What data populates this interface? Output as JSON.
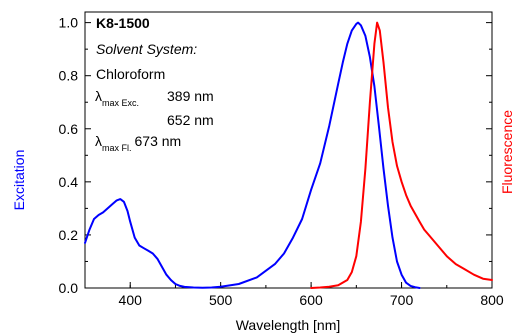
{
  "chart_data": {
    "type": "line",
    "xlabel": "Wavelength [nm]",
    "ylabel_left": "Excitation",
    "ylabel_right": "Fluorescence",
    "xlim": [
      350,
      800
    ],
    "ylim": [
      0,
      1.04
    ],
    "x_ticks": [
      "400",
      "500",
      "600",
      "700",
      "800"
    ],
    "y_ticks": [
      "0.0",
      "0.2",
      "0.4",
      "0.6",
      "0.8",
      "1.0"
    ],
    "grid": false,
    "colors": {
      "excitation": "#0000ff",
      "fluorescence": "#ff0000",
      "frame": "#000000"
    },
    "annotations": {
      "compound": "K8-1500",
      "solvent_label": "Solvent System:",
      "solvent": "Chloroform",
      "lambda_exc_symbol": "λ",
      "lambda_exc_sub": "max Exc.",
      "lambda_exc_value_1": "389 nm",
      "lambda_exc_value_2": "652 nm",
      "lambda_fl_symbol": "λ",
      "lambda_fl_sub": "max Fl.",
      "lambda_fl_value": "673 nm"
    },
    "series": [
      {
        "key": "excitation",
        "x": [
          350,
          355,
          360,
          365,
          370,
          375,
          380,
          385,
          389,
          393,
          397,
          400,
          405,
          410,
          415,
          420,
          425,
          430,
          435,
          440,
          445,
          450,
          455,
          460,
          470,
          480,
          490,
          500,
          520,
          540,
          560,
          570,
          580,
          590,
          600,
          610,
          620,
          630,
          635,
          640,
          645,
          650,
          652,
          655,
          660,
          665,
          670,
          675,
          680,
          685,
          690,
          695,
          700,
          705,
          710,
          715,
          720
        ],
        "y": [
          0.17,
          0.22,
          0.26,
          0.275,
          0.285,
          0.3,
          0.315,
          0.33,
          0.335,
          0.325,
          0.29,
          0.25,
          0.19,
          0.16,
          0.15,
          0.14,
          0.13,
          0.11,
          0.08,
          0.05,
          0.03,
          0.015,
          0.008,
          0.004,
          0.002,
          0.001,
          0.002,
          0.005,
          0.015,
          0.04,
          0.09,
          0.13,
          0.19,
          0.26,
          0.37,
          0.47,
          0.61,
          0.77,
          0.85,
          0.92,
          0.97,
          0.995,
          1.0,
          0.99,
          0.95,
          0.87,
          0.76,
          0.61,
          0.45,
          0.31,
          0.19,
          0.1,
          0.05,
          0.02,
          0.008,
          0.003,
          0.0
        ]
      },
      {
        "key": "fluorescence",
        "x": [
          600,
          610,
          620,
          630,
          640,
          645,
          650,
          655,
          660,
          665,
          670,
          673,
          676,
          680,
          685,
          690,
          695,
          700,
          705,
          710,
          715,
          720,
          725,
          730,
          740,
          750,
          760,
          770,
          780,
          790,
          800
        ],
        "y": [
          0.0,
          0.002,
          0.005,
          0.01,
          0.03,
          0.06,
          0.12,
          0.25,
          0.45,
          0.7,
          0.92,
          1.0,
          0.97,
          0.85,
          0.68,
          0.55,
          0.46,
          0.4,
          0.35,
          0.31,
          0.28,
          0.25,
          0.22,
          0.2,
          0.16,
          0.12,
          0.09,
          0.07,
          0.05,
          0.035,
          0.03
        ]
      }
    ]
  }
}
